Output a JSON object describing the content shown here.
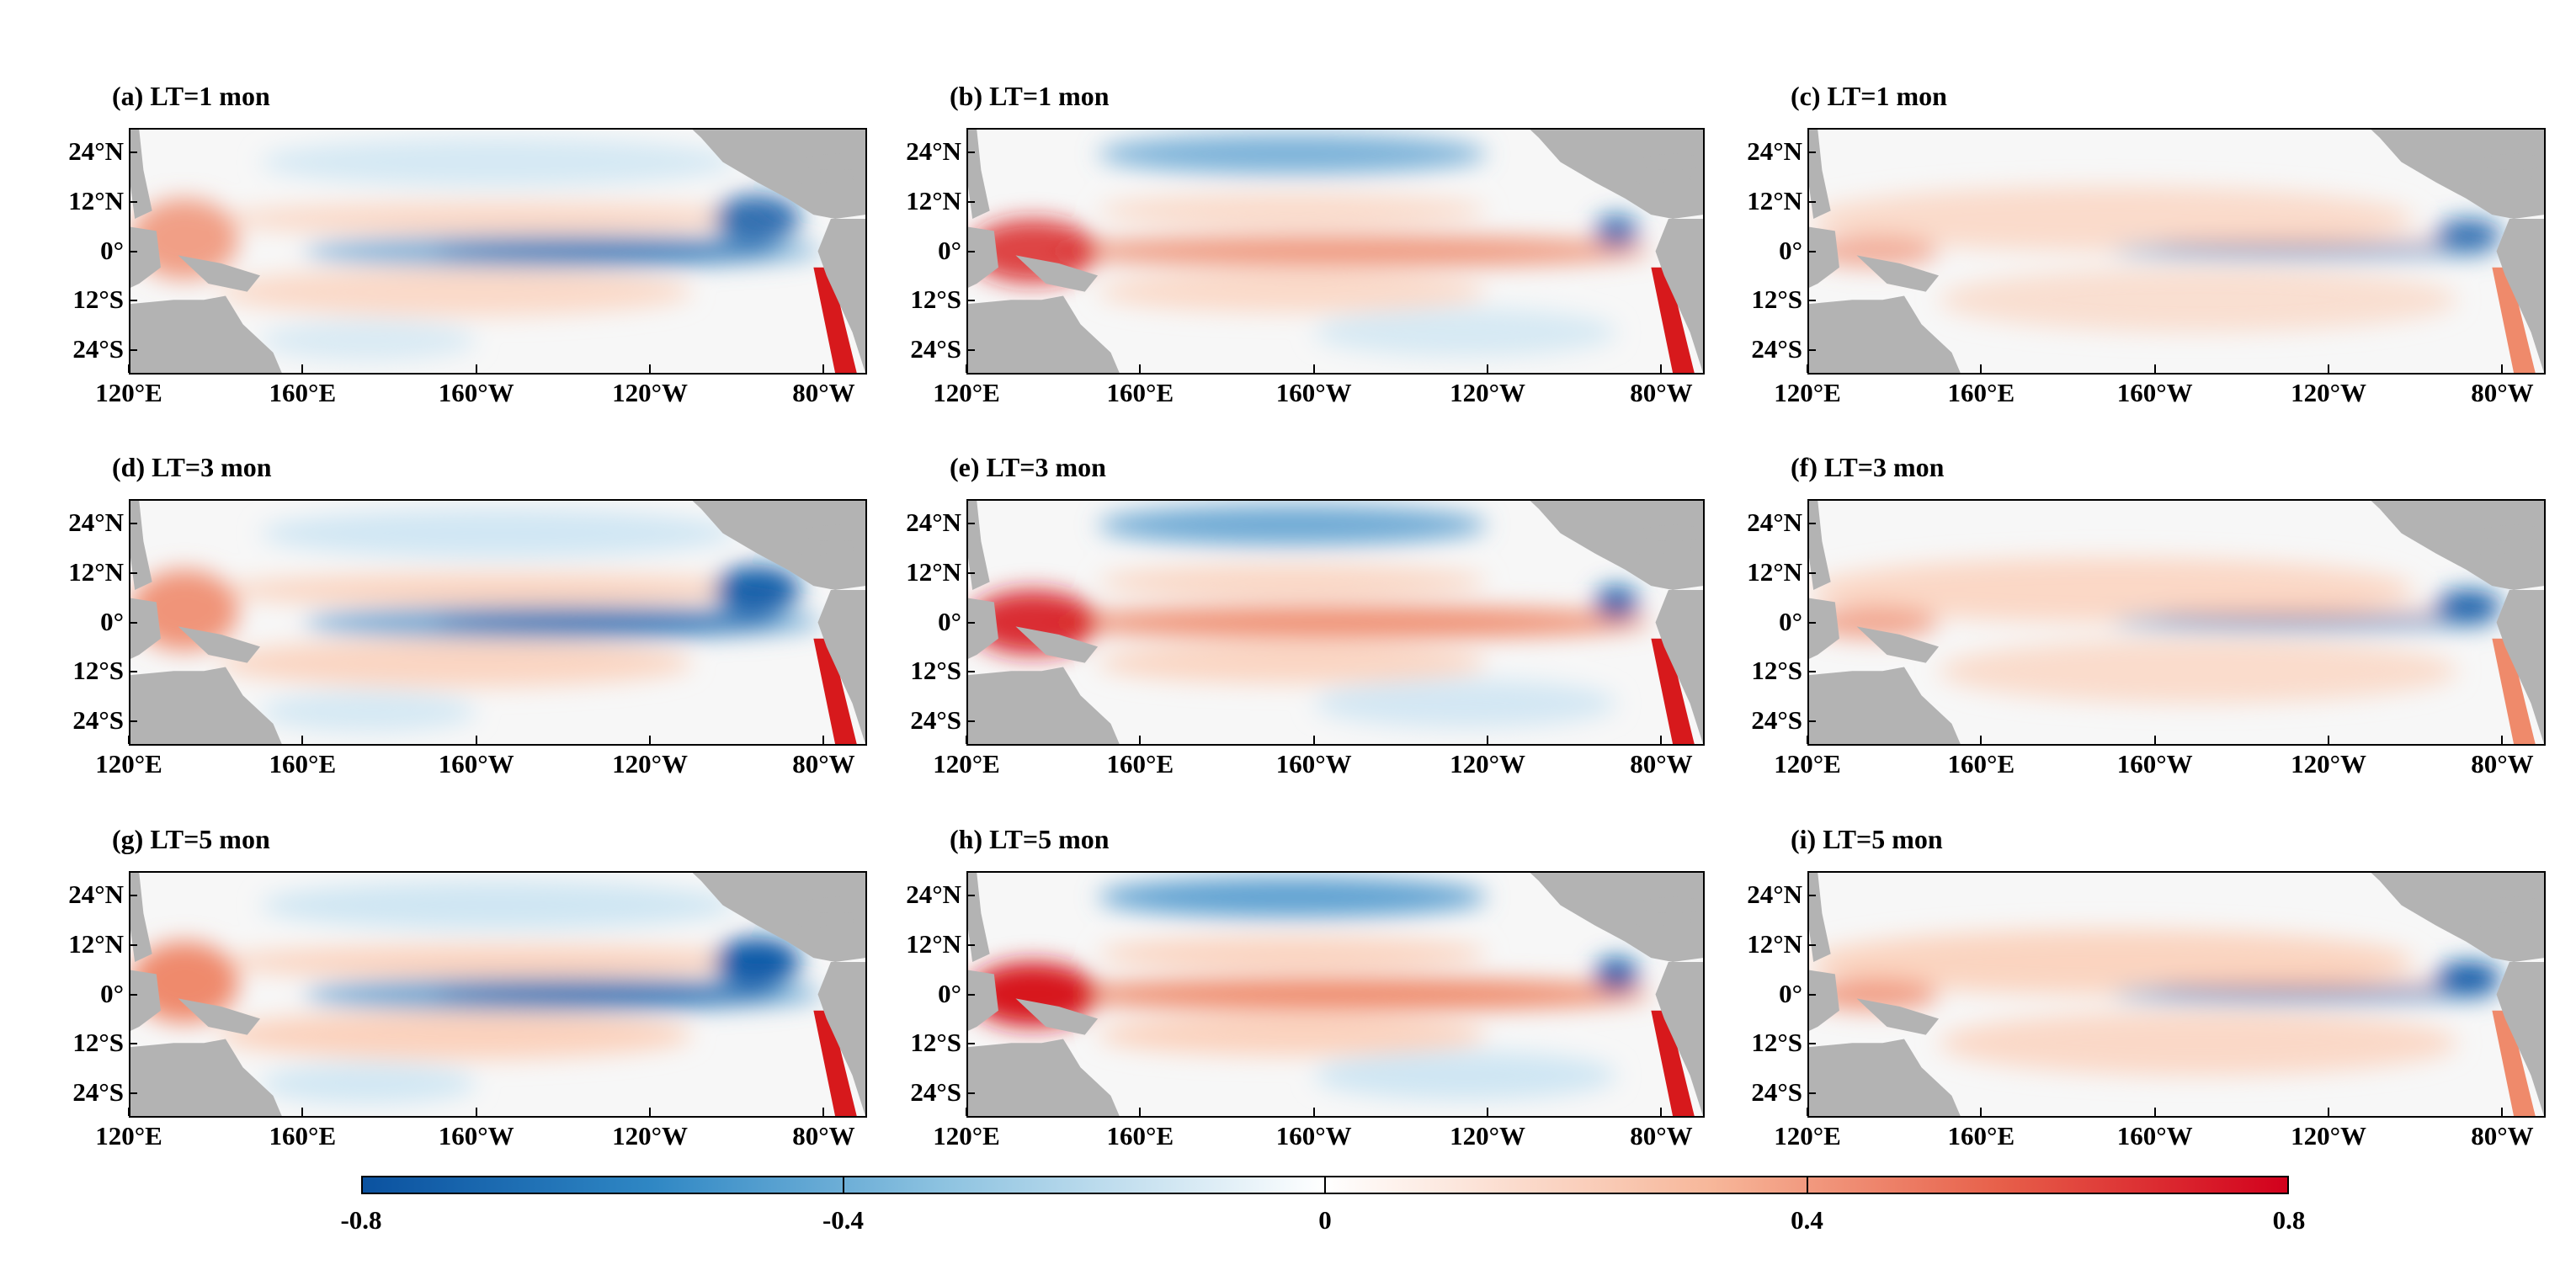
{
  "chart_data": {
    "type": "heatmap",
    "layout": "3 rows x 3 columns of map panels",
    "panels": [
      {
        "id": "a",
        "title": "(a) LT=1 mon",
        "lead_time_months": 1,
        "pattern": "a"
      },
      {
        "id": "b",
        "title": "(b) LT=1 mon",
        "lead_time_months": 1,
        "pattern": "b"
      },
      {
        "id": "c",
        "title": "(c) LT=1 mon",
        "lead_time_months": 1,
        "pattern": "c"
      },
      {
        "id": "d",
        "title": "(d) LT=3 mon",
        "lead_time_months": 3,
        "pattern": "a"
      },
      {
        "id": "e",
        "title": "(e) LT=3 mon",
        "lead_time_months": 3,
        "pattern": "b"
      },
      {
        "id": "f",
        "title": "(f) LT=3 mon",
        "lead_time_months": 3,
        "pattern": "c"
      },
      {
        "id": "g",
        "title": "(g) LT=5 mon",
        "lead_time_months": 5,
        "pattern": "a"
      },
      {
        "id": "h",
        "title": "(h) LT=5 mon",
        "lead_time_months": 5,
        "pattern": "b"
      },
      {
        "id": "i",
        "title": "(i) LT=5 mon",
        "lead_time_months": 5,
        "pattern": "c"
      }
    ],
    "lat_ticks": [
      "24°N",
      "12°N",
      "0°",
      "12°S",
      "24°S"
    ],
    "lat_values": [
      24,
      12,
      0,
      -12,
      -24
    ],
    "lon_ticks": [
      "120°E",
      "160°E",
      "160°W",
      "120°W",
      "80°W"
    ],
    "lon_values": [
      120,
      160,
      200,
      240,
      280
    ],
    "lat_range": [
      -30,
      30
    ],
    "lon_range": [
      120,
      290
    ],
    "colorbar": {
      "ticks": [
        "-0.8",
        "-0.4",
        "0",
        "0.4",
        "0.8"
      ],
      "tick_values": [
        -0.8,
        -0.4,
        0,
        0.4,
        0.8
      ],
      "range": [
        -0.8,
        0.8
      ],
      "colormap": "blue-white-red"
    },
    "colors": {
      "land": "#b3b3b3",
      "neg_strong": "#0b5aa8",
      "neg_mid": "#5fa2d2",
      "neg_weak": "#cfe6f3",
      "neutral": "#f7f7f7",
      "pos_weak": "#fbd2bd",
      "pos_mid": "#ef8a6b",
      "pos_strong": "#d7191c"
    }
  }
}
